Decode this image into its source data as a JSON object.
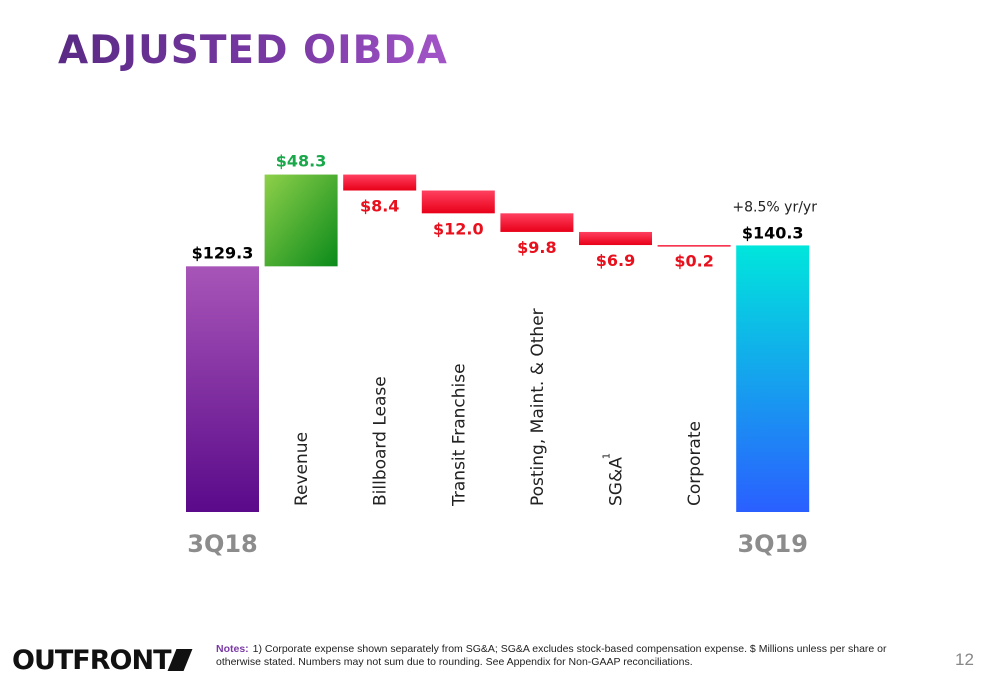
{
  "title": "ADJUSTED OIBDA",
  "colors": {
    "start_bar": [
      "#a855b8",
      "#5a0a8a"
    ],
    "increase": [
      "#8ed04a",
      "#0a8a1a"
    ],
    "decrease": [
      "#ff4060",
      "#e80018"
    ],
    "end_bar": [
      "#00e6dc",
      "#2a5fff"
    ],
    "increase_label": "#1aa84a",
    "decrease_label": "#e8101c",
    "total_label": "#000000",
    "period_label": "#8c8c8c"
  },
  "chart_data": {
    "type": "waterfall",
    "unit": "$ Millions",
    "start": {
      "label": "3Q18",
      "value": 129.3,
      "value_label": "$129.3"
    },
    "steps": [
      {
        "category": "Revenue",
        "value": 48.3,
        "value_label": "$48.3"
      },
      {
        "category": "Billboard Lease",
        "value": -8.4,
        "value_label": "$8.4"
      },
      {
        "category": "Transit Franchise",
        "value": -12.0,
        "value_label": "$12.0"
      },
      {
        "category": "Posting, Maint. & Other",
        "value": -9.8,
        "value_label": "$9.8"
      },
      {
        "category": "SG&A",
        "superscript": "1",
        "value": -6.9,
        "value_label": "$6.9"
      },
      {
        "category": "Corporate",
        "value": -0.2,
        "value_label": "$0.2"
      }
    ],
    "end": {
      "label": "3Q19",
      "value": 140.3,
      "value_label": "$140.3",
      "annotation": "+8.5% yr/yr"
    }
  },
  "footer": {
    "logo": "OUTFRONT",
    "notes_label": "Notes:",
    "notes_text": "1) Corporate expense shown separately from SG&A; SG&A excludes stock-based compensation expense. $ Millions unless per share or otherwise stated. Numbers may not sum due to rounding.  See Appendix for Non-GAAP reconciliations.",
    "page_number": "12"
  }
}
